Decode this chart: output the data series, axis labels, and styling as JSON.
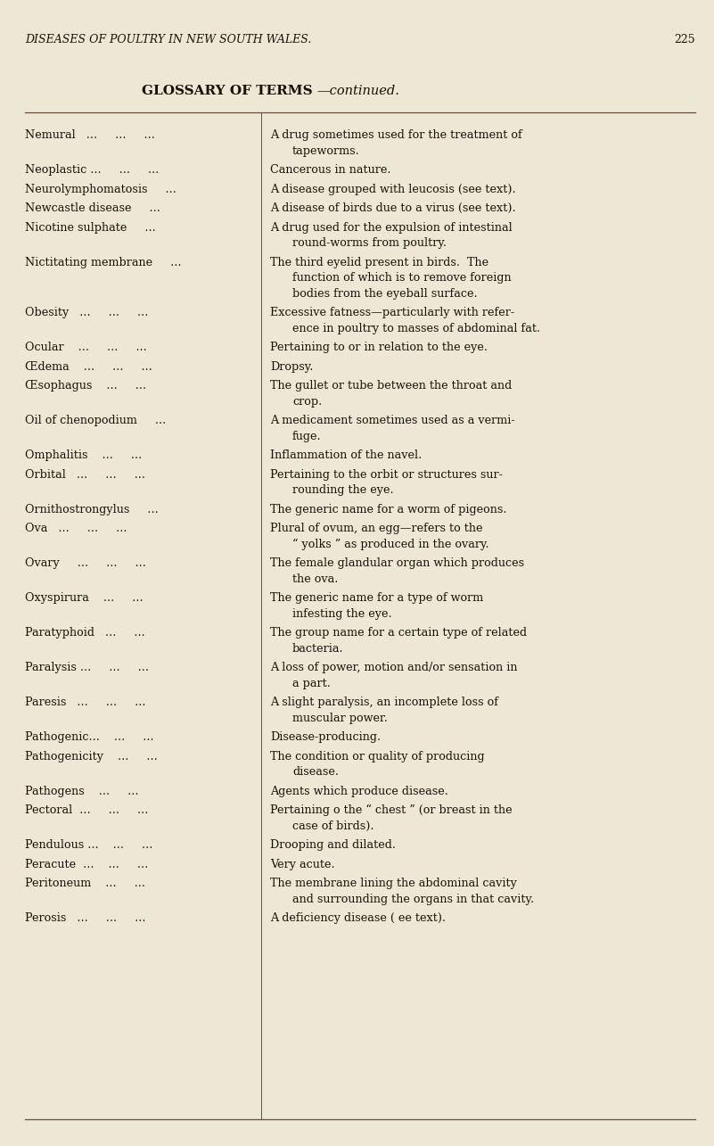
{
  "bg_color": "#ede8d5",
  "text_color": "#1a1008",
  "header_italic": "DISEASES OF POULTRY IN NEW SOUTH WALES.",
  "page_number": "225",
  "title_bold": "GLOSSARY OF TERMS",
  "title_italic": "—continued.",
  "entries": [
    {
      "term": "Nemural   ...     ...     ...",
      "def_lines": [
        "A drug sometimes used for the treatment of",
        "tapeworms."
      ],
      "indent_cont": true
    },
    {
      "term": "Neoplastic ...     ...     ...",
      "def_lines": [
        "Cancerous in nature."
      ],
      "indent_cont": false
    },
    {
      "term": "Neurolymphomatosis     ...",
      "def_lines": [
        "A disease grouped with leucosis (see text)."
      ],
      "indent_cont": false
    },
    {
      "term": "Newcastle disease     ...",
      "def_lines": [
        "A disease of birds due to a virus (see text)."
      ],
      "indent_cont": false
    },
    {
      "term": "Nicotine sulphate     ...",
      "def_lines": [
        "A drug used for the expulsion of intestinal",
        "round-worms from poultry."
      ],
      "indent_cont": true
    },
    {
      "term": "Nictitating membrane     ...",
      "def_lines": [
        "The third eyelid present in birds.  The",
        "function of which is to remove foreign",
        "bodies from the eyeball surface."
      ],
      "indent_cont": true
    },
    {
      "term": "Obesity   ...     ...     ...",
      "def_lines": [
        "Excessive fatness—particularly with refer-",
        "ence in poultry to masses of abdominal fat."
      ],
      "indent_cont": true
    },
    {
      "term": "Ocular    ...     ...     ...",
      "def_lines": [
        "Pertaining to or in relation to the eye."
      ],
      "indent_cont": false
    },
    {
      "term": "Œdema    ...     ...     ...",
      "def_lines": [
        "Dropsy."
      ],
      "indent_cont": false
    },
    {
      "term": "Œsophagus    ...     ...",
      "def_lines": [
        "The gullet or tube between the throat and",
        "crop."
      ],
      "indent_cont": true
    },
    {
      "term": "Oil of chenopodium     ...",
      "def_lines": [
        "A medicament sometimes used as a vermi-",
        "fuge."
      ],
      "indent_cont": true
    },
    {
      "term": "Omphalitis    ...     ...",
      "def_lines": [
        "Inflammation of the navel."
      ],
      "indent_cont": false
    },
    {
      "term": "Orbital   ...     ...     ...",
      "def_lines": [
        "Pertaining to the orbit or structures sur-",
        "rounding the eye."
      ],
      "indent_cont": true
    },
    {
      "term": "Ornithostrongylus     ...",
      "def_lines": [
        "The generic name for a worm of pigeons."
      ],
      "indent_cont": false
    },
    {
      "term": "Ova   ...     ...     ...",
      "def_lines": [
        "Plural of ovum, an egg—refers to the",
        "“ yolks ” as produced in the ovary."
      ],
      "indent_cont": true
    },
    {
      "term": "Ovary     ...     ...     ...",
      "def_lines": [
        "The female glandular organ which produces",
        "the ova."
      ],
      "indent_cont": true
    },
    {
      "term": "Oxyspirura    ...     ...",
      "def_lines": [
        "The generic name for a type of worm",
        "infesting the eye."
      ],
      "indent_cont": true
    },
    {
      "term": "Paratyphoid   ...     ...",
      "def_lines": [
        "The group name for a certain type of related",
        "bacteria."
      ],
      "indent_cont": true
    },
    {
      "term": "Paralysis ...     ...     ...",
      "def_lines": [
        "A loss of power, motion and/or sensation in",
        "a part."
      ],
      "indent_cont": true
    },
    {
      "term": "Paresis   ...     ...     ...",
      "def_lines": [
        "A slight paralysis, an incomplete loss of",
        "muscular power."
      ],
      "indent_cont": true
    },
    {
      "term": "Pathogenic...    ...     ...",
      "def_lines": [
        "Disease-producing."
      ],
      "indent_cont": false
    },
    {
      "term": "Pathogenicity    ...     ...",
      "def_lines": [
        "The condition or quality of producing",
        "disease."
      ],
      "indent_cont": true
    },
    {
      "term": "Pathogens    ...     ...",
      "def_lines": [
        "Agents which produce disease."
      ],
      "indent_cont": false
    },
    {
      "term": "Pectoral  ...     ...     ...",
      "def_lines": [
        "Pertaining o the “ chest ” (or breast in the",
        "case of birds)."
      ],
      "indent_cont": true
    },
    {
      "term": "Pendulous ...    ...     ...",
      "def_lines": [
        "Drooping and dilated."
      ],
      "indent_cont": false
    },
    {
      "term": "Peracute  ...    ...     ...",
      "def_lines": [
        "Very acute."
      ],
      "indent_cont": false
    },
    {
      "term": "Peritoneum    ...     ...",
      "def_lines": [
        "The membrane lining the abdominal cavity",
        "and surrounding the organs in that cavity."
      ],
      "indent_cont": true
    },
    {
      "term": "Perosis   ...     ...     ...",
      "def_lines": [
        "A deficiency disease ( ee text)."
      ],
      "indent_cont": false
    }
  ]
}
